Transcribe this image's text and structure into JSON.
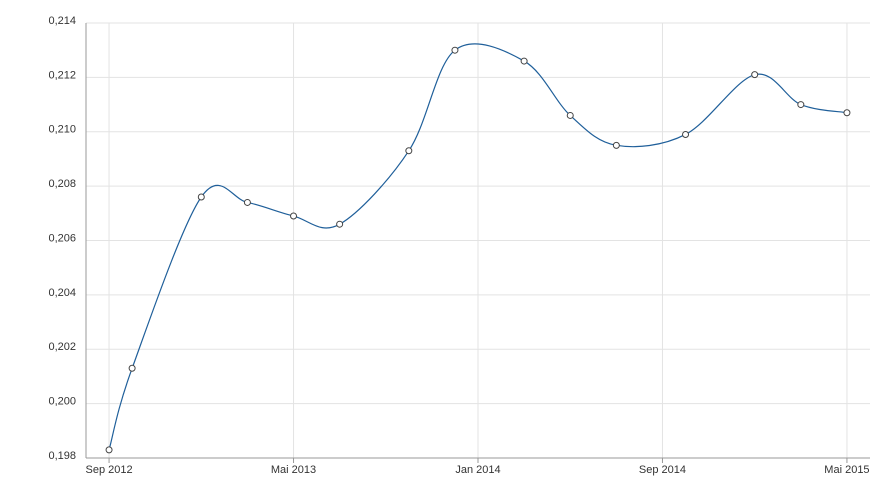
{
  "chart_data": {
    "type": "line",
    "x": [
      "2012-09",
      "2012-10",
      "2013-01",
      "2013-03",
      "2013-05",
      "2013-07",
      "2013-10",
      "2013-12",
      "2014-03",
      "2014-05",
      "2014-07",
      "2014-10",
      "2015-01",
      "2015-03",
      "2015-05"
    ],
    "series": [
      {
        "name": null,
        "color": "#1f5f9a",
        "values": [
          0.1983,
          0.2013,
          0.2076,
          0.2074,
          0.2069,
          0.2066,
          0.2093,
          0.213,
          0.2126,
          0.2106,
          0.2095,
          0.2099,
          0.2121,
          0.211,
          0.2107
        ]
      }
    ],
    "xlim": [
      "2012-08",
      "2015-06"
    ],
    "xticks": [
      {
        "value": "2012-09",
        "label": "Sep 2012"
      },
      {
        "value": "2013-05",
        "label": "Mai 2013"
      },
      {
        "value": "2014-01",
        "label": "Jan 2014"
      },
      {
        "value": "2014-09",
        "label": "Sep 2014"
      },
      {
        "value": "2015-05",
        "label": "Mai 2015"
      }
    ],
    "ylim": [
      0.198,
      0.214
    ],
    "yticks": [
      {
        "value": 0.198,
        "label": "0,198"
      },
      {
        "value": 0.2,
        "label": "0,200"
      },
      {
        "value": 0.202,
        "label": "0,202"
      },
      {
        "value": 0.204,
        "label": "0,204"
      },
      {
        "value": 0.206,
        "label": "0,206"
      },
      {
        "value": 0.208,
        "label": "0,208"
      },
      {
        "value": 0.21,
        "label": "0,210"
      },
      {
        "value": 0.212,
        "label": "0,212"
      },
      {
        "value": 0.214,
        "label": "0,214"
      }
    ],
    "grid": true
  }
}
